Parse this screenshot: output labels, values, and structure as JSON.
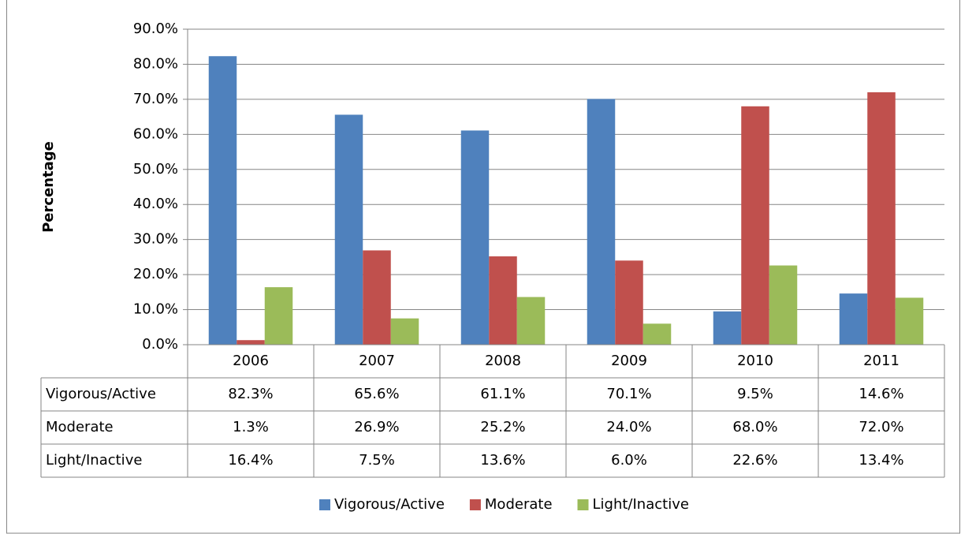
{
  "chart_data": {
    "type": "bar",
    "y_label": "Percentage",
    "categories": [
      "2006",
      "2007",
      "2008",
      "2009",
      "2010",
      "2011"
    ],
    "series": [
      {
        "name": "Vigorous/Active",
        "color": "#4f81bd",
        "values": [
          82.3,
          65.6,
          61.1,
          70.1,
          9.5,
          14.6
        ],
        "value_labels": [
          "82.3%",
          "65.6%",
          "61.1%",
          "70.1%",
          "9.5%",
          "14.6%"
        ]
      },
      {
        "name": "Moderate",
        "color": "#c0504d",
        "values": [
          1.3,
          26.9,
          25.2,
          24.0,
          68.0,
          72.0
        ],
        "value_labels": [
          "1.3%",
          "26.9%",
          "25.2%",
          "24.0%",
          "68.0%",
          "72.0%"
        ]
      },
      {
        "name": "Light/Inactive",
        "color": "#9bbb59",
        "values": [
          16.4,
          7.5,
          13.6,
          6.0,
          22.6,
          13.4
        ],
        "value_labels": [
          "16.4%",
          "7.5%",
          "13.6%",
          "6.0%",
          "22.6%",
          "13.4%"
        ]
      }
    ],
    "ylim": [
      0,
      90
    ],
    "yticks": [
      {
        "value": 0,
        "label": "0.0%"
      },
      {
        "value": 10,
        "label": "10.0%"
      },
      {
        "value": 20,
        "label": "20.0%"
      },
      {
        "value": 30,
        "label": "30.0%"
      },
      {
        "value": 40,
        "label": "40.0%"
      },
      {
        "value": 50,
        "label": "50.0%"
      },
      {
        "value": 60,
        "label": "60.0%"
      },
      {
        "value": 70,
        "label": "70.0%"
      },
      {
        "value": 80,
        "label": "80.0%"
      },
      {
        "value": 90,
        "label": "90.0%"
      }
    ],
    "grid": true,
    "legend": "bottom"
  }
}
